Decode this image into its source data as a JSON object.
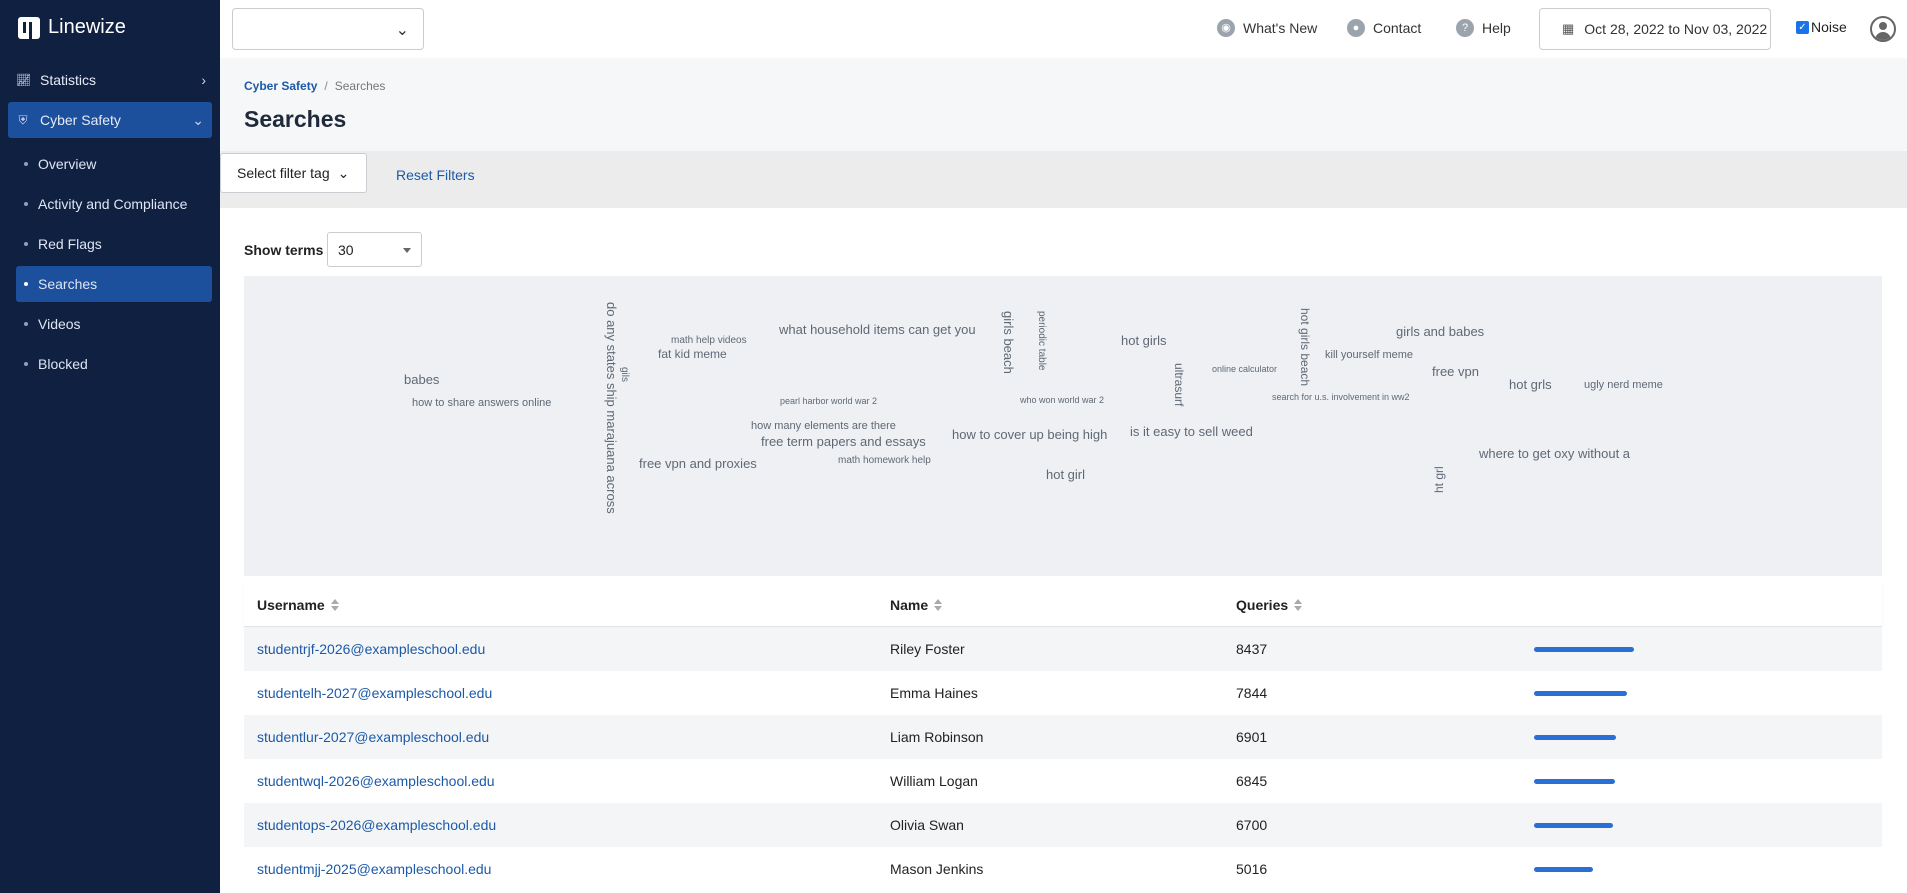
{
  "brand": {
    "name": "Linewize"
  },
  "sidebar": {
    "statistics": "Statistics",
    "cyber_safety": "Cyber Safety",
    "items": [
      "Overview",
      "Activity and Compliance",
      "Red Flags",
      "Searches",
      "Videos",
      "Blocked"
    ]
  },
  "header": {
    "whats_new": "What's New",
    "contact": "Contact",
    "help": "Help",
    "date_range": "Oct 28, 2022 to Nov 03, 2022",
    "noise": "Noise",
    "noise_checked": true
  },
  "breadcrumb": {
    "parent": "Cyber Safety",
    "current": "Searches"
  },
  "page_title": "Searches",
  "filters": {
    "tag_placeholder": "Select filter tag",
    "reset": "Reset Filters"
  },
  "show_terms": {
    "label": "Show terms",
    "value": "30"
  },
  "word_cloud": [
    "babes",
    "how to share answers online",
    "do any states ship marajuana across",
    "gils",
    "math help videos",
    "fat kid meme",
    "what household items can get you",
    "pearl harbor world war 2",
    "how many elements are there",
    "free term papers and essays",
    "free vpn and proxies",
    "math homework help",
    "girls beach",
    "periodic table",
    "who won world war 2",
    "how to cover up being high",
    "hot girl",
    "hot girls",
    "ultrasurf",
    "is it easy to sell weed",
    "online calculator",
    "hot girls beach",
    "kill yourself meme",
    "search for u.s. involvement in ww2",
    "girls and babes",
    "free vpn",
    "hot grls",
    "ugly nerd meme",
    "where to get oxy without a",
    "ht grl"
  ],
  "table": {
    "columns": {
      "username": "Username",
      "name": "Name",
      "queries": "Queries"
    },
    "max_queries": 8437,
    "rows": [
      {
        "username": "studentrjf-2026@exampleschool.edu",
        "name": "Riley Foster",
        "queries": "8437"
      },
      {
        "username": "studentelh-2027@exampleschool.edu",
        "name": "Emma Haines",
        "queries": "7844"
      },
      {
        "username": "studentlur-2027@exampleschool.edu",
        "name": "Liam Robinson",
        "queries": "6901"
      },
      {
        "username": "studentwql-2026@exampleschool.edu",
        "name": "William Logan",
        "queries": "6845"
      },
      {
        "username": "studentops-2026@exampleschool.edu",
        "name": "Olivia Swan",
        "queries": "6700"
      },
      {
        "username": "studentmjj-2025@exampleschool.edu",
        "name": "Mason Jenkins",
        "queries": "5016"
      }
    ]
  },
  "colors": {
    "sidebar_bg": "#0f2040",
    "active_nav": "#1c4f9c",
    "link": "#1c5aa8",
    "bar": "#2a6fd4"
  }
}
